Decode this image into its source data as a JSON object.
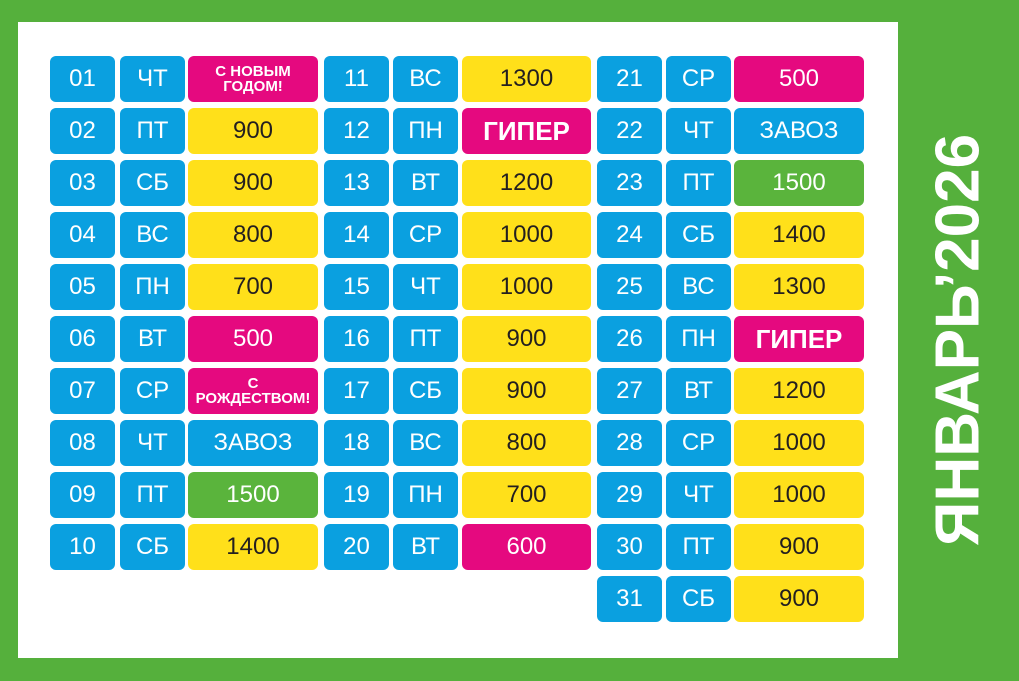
{
  "title": "ЯНВАРЬ’2026",
  "days": [
    {
      "day": "01",
      "weekday": "ЧТ",
      "label": "С НОВЫМ ГОДОМ!",
      "color": "#e5097f"
    },
    {
      "day": "02",
      "weekday": "ПТ",
      "label": 900,
      "color": "#ffe01a"
    },
    {
      "day": "03",
      "weekday": "СБ",
      "label": 900,
      "color": "#ffe01a"
    },
    {
      "day": "04",
      "weekday": "ВС",
      "label": 800,
      "color": "#ffe01a"
    },
    {
      "day": "05",
      "weekday": "ПН",
      "label": 700,
      "color": "#ffe01a"
    },
    {
      "day": "06",
      "weekday": "ВТ",
      "label": 500,
      "color": "#e5097f"
    },
    {
      "day": "07",
      "weekday": "СР",
      "label": "С РОЖДЕСТВОМ!",
      "color": "#e5097f"
    },
    {
      "day": "08",
      "weekday": "ЧТ",
      "label": "ЗАВОЗ",
      "color": "#0aa0e0"
    },
    {
      "day": "09",
      "weekday": "ПТ",
      "label": 1500,
      "color": "#5ab43c"
    },
    {
      "day": "10",
      "weekday": "СБ",
      "label": 1400,
      "color": "#ffe01a"
    },
    {
      "day": "11",
      "weekday": "ВС",
      "label": 1300,
      "color": "#ffe01a"
    },
    {
      "day": "12",
      "weekday": "ПН",
      "label": "ГИПЕР",
      "color": "#e5097f"
    },
    {
      "day": "13",
      "weekday": "ВТ",
      "label": 1200,
      "color": "#ffe01a"
    },
    {
      "day": "14",
      "weekday": "СР",
      "label": 1000,
      "color": "#ffe01a"
    },
    {
      "day": "15",
      "weekday": "ЧТ",
      "label": 1000,
      "color": "#ffe01a"
    },
    {
      "day": "16",
      "weekday": "ПТ",
      "label": 900,
      "color": "#ffe01a"
    },
    {
      "day": "17",
      "weekday": "СБ",
      "label": 900,
      "color": "#ffe01a"
    },
    {
      "day": "18",
      "weekday": "ВС",
      "label": 800,
      "color": "#ffe01a"
    },
    {
      "day": "19",
      "weekday": "ПН",
      "label": 700,
      "color": "#ffe01a"
    },
    {
      "day": "20",
      "weekday": "ВТ",
      "label": 600,
      "color": "#e5097f"
    },
    {
      "day": "21",
      "weekday": "СР",
      "label": 500,
      "color": "#e5097f"
    },
    {
      "day": "22",
      "weekday": "ЧТ",
      "label": "ЗАВОЗ",
      "color": "#0aa0e0"
    },
    {
      "day": "23",
      "weekday": "ПТ",
      "label": 1500,
      "color": "#5ab43c"
    },
    {
      "day": "24",
      "weekday": "СБ",
      "label": 1400,
      "color": "#ffe01a"
    },
    {
      "day": "25",
      "weekday": "ВС",
      "label": 1300,
      "color": "#ffe01a"
    },
    {
      "day": "26",
      "weekday": "ПН",
      "label": "ГИПЕР",
      "color": "#e5097f"
    },
    {
      "day": "27",
      "weekday": "ВТ",
      "label": 1200,
      "color": "#ffe01a"
    },
    {
      "day": "28",
      "weekday": "СР",
      "label": 1000,
      "color": "#ffe01a"
    },
    {
      "day": "29",
      "weekday": "ЧТ",
      "label": 1000,
      "color": "#ffe01a"
    },
    {
      "day": "30",
      "weekday": "ПТ",
      "label": 900,
      "color": "#ffe01a"
    },
    {
      "day": "31",
      "weekday": "СБ",
      "label": 900,
      "color": "#ffe01a"
    }
  ]
}
